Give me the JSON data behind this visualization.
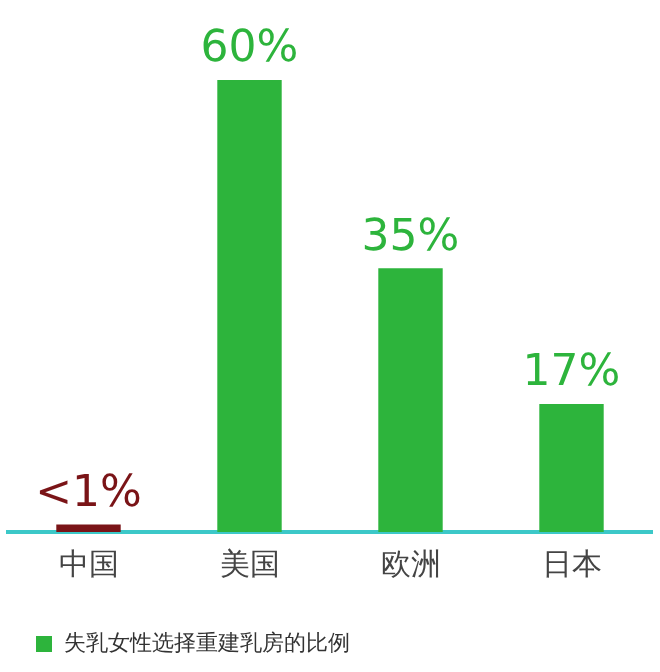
{
  "chart_data": {
    "type": "bar",
    "categories": [
      "中国",
      "美国",
      "欧洲",
      "日本"
    ],
    "series": [
      {
        "name": "失乳女性选择重建乳房的比例",
        "color": "#2db43c",
        "colors": [
          "#7a1417",
          "#2db43c",
          "#2db43c",
          "#2db43c"
        ],
        "values": [
          1,
          60,
          35,
          17
        ],
        "value_labels": [
          "<1%",
          "60%",
          "35%",
          "17%"
        ]
      }
    ],
    "legend": "bottom left"
  }
}
